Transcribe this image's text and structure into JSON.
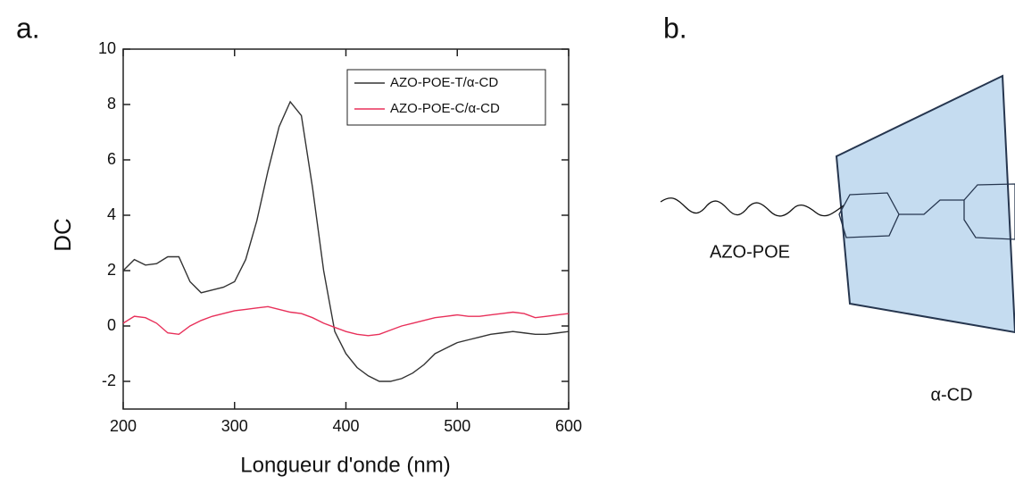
{
  "panel_labels": [
    "a.",
    "b."
  ],
  "chart_data": {
    "type": "line",
    "x_label": "Longueur d'onde (nm)",
    "y_label": "DC",
    "x": [
      200,
      210,
      220,
      230,
      240,
      250,
      260,
      270,
      280,
      290,
      300,
      310,
      320,
      330,
      340,
      350,
      360,
      370,
      380,
      390,
      400,
      410,
      420,
      430,
      440,
      450,
      460,
      470,
      480,
      490,
      500,
      510,
      520,
      530,
      540,
      550,
      560,
      570,
      580,
      590,
      600
    ],
    "series": [
      {
        "name": "AZO-POE-T/α-CD",
        "color": "#333333",
        "values": [
          2.0,
          2.4,
          2.2,
          2.25,
          2.5,
          2.5,
          1.6,
          1.2,
          1.3,
          1.4,
          1.6,
          2.4,
          3.8,
          5.6,
          7.2,
          8.1,
          7.6,
          5.0,
          2.0,
          -0.2,
          -1.0,
          -1.5,
          -1.8,
          -2.0,
          -2.0,
          -1.9,
          -1.7,
          -1.4,
          -1.0,
          -0.8,
          -0.6,
          -0.5,
          -0.4,
          -0.3,
          -0.25,
          -0.2,
          -0.25,
          -0.3,
          -0.3,
          -0.25,
          -0.2
        ]
      },
      {
        "name": "AZO-POE-C/α-CD",
        "color": "#e8305a",
        "values": [
          0.1,
          0.35,
          0.3,
          0.1,
          -0.25,
          -0.3,
          0.0,
          0.2,
          0.35,
          0.45,
          0.55,
          0.6,
          0.65,
          0.7,
          0.6,
          0.5,
          0.45,
          0.3,
          0.1,
          -0.05,
          -0.2,
          -0.3,
          -0.35,
          -0.3,
          -0.15,
          0.0,
          0.1,
          0.2,
          0.3,
          0.35,
          0.4,
          0.35,
          0.35,
          0.4,
          0.45,
          0.5,
          0.45,
          0.3,
          0.35,
          0.4,
          0.45
        ]
      }
    ],
    "xlim": [
      200,
      600
    ],
    "xticks": [
      200,
      300,
      400,
      500,
      600
    ],
    "ylim": [
      -3,
      10
    ],
    "yticks": [
      -2,
      0,
      2,
      4,
      6,
      8,
      10
    ],
    "legend": "upper right"
  },
  "diagram": {
    "chain_label": "AZO-POE",
    "ring_label": "α-CD"
  }
}
